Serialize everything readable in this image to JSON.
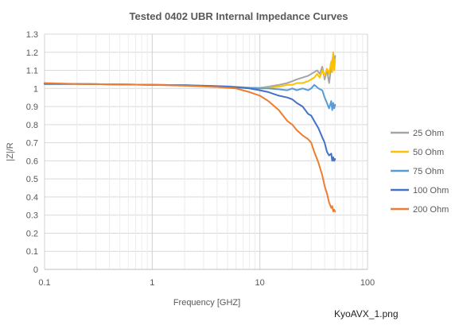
{
  "caption": "KyoAVX_1.png",
  "chart_data": {
    "type": "line",
    "title": "Tested 0402 UBR Internal Impedance Curves",
    "xlabel": "Frequency [GHZ]",
    "ylabel": "|Z|/R",
    "xscale": "log",
    "xlim": [
      0.1,
      100
    ],
    "ylim": [
      0,
      1.3
    ],
    "x_ticks": [
      0.1,
      1,
      10,
      100
    ],
    "x_tick_labels": [
      "0.1",
      "1",
      "10",
      "100"
    ],
    "y_ticks": [
      0,
      0.1,
      0.2,
      0.3,
      0.4,
      0.5,
      0.6,
      0.7,
      0.8,
      0.9,
      1,
      1.1,
      1.2,
      1.3
    ],
    "y_tick_labels": [
      "0",
      "0.1",
      "0.2",
      "0.3",
      "0.4",
      "0.5",
      "0.6",
      "0.7",
      "0.8",
      "0.9",
      "1",
      "1.1",
      "1.2",
      "1.3"
    ],
    "grid": "major and minor vertical, major horizontal",
    "legend_position": "right",
    "series": [
      {
        "name": "25 Ohm",
        "color": "#a5a5a5",
        "x": [
          0.1,
          0.2,
          0.5,
          1,
          2,
          5,
          8,
          10,
          12,
          15,
          18,
          20,
          22,
          25,
          28,
          30,
          32,
          34,
          36,
          38,
          40,
          42,
          44,
          46,
          47,
          48,
          49,
          50
        ],
        "y": [
          1.025,
          1.025,
          1.022,
          1.02,
          1.018,
          1.012,
          1.005,
          1.003,
          1.01,
          1.02,
          1.03,
          1.04,
          1.05,
          1.06,
          1.07,
          1.08,
          1.09,
          1.1,
          1.08,
          1.12,
          1.05,
          1.1,
          1.03,
          1.12,
          1.15,
          1.19,
          1.13,
          1.18
        ]
      },
      {
        "name": "50 Ohm",
        "color": "#ffc000",
        "x": [
          0.1,
          0.2,
          0.5,
          1,
          2,
          5,
          8,
          10,
          12,
          15,
          18,
          20,
          22,
          25,
          28,
          30,
          32,
          34,
          36,
          38,
          40,
          42,
          44,
          46,
          47,
          48,
          49,
          50
        ],
        "y": [
          1.025,
          1.025,
          1.022,
          1.02,
          1.018,
          1.01,
          1.003,
          1.0,
          1.005,
          1.01,
          1.02,
          1.02,
          1.03,
          1.03,
          1.04,
          1.05,
          1.06,
          1.08,
          1.06,
          1.1,
          1.07,
          1.11,
          1.08,
          1.15,
          1.09,
          1.2,
          1.1,
          1.16
        ]
      },
      {
        "name": "75 Ohm",
        "color": "#5b9bd5",
        "x": [
          0.1,
          0.2,
          0.5,
          1,
          2,
          5,
          8,
          10,
          12,
          15,
          18,
          20,
          22,
          25,
          28,
          30,
          32,
          35,
          38,
          40,
          42,
          44,
          46,
          47,
          48,
          49,
          50
        ],
        "y": [
          1.025,
          1.025,
          1.022,
          1.02,
          1.018,
          1.01,
          1.003,
          1.0,
          1.0,
          0.995,
          0.99,
          1.0,
          0.99,
          1.0,
          0.99,
          1.0,
          1.02,
          1.0,
          0.99,
          0.95,
          0.92,
          0.89,
          0.93,
          0.88,
          0.92,
          0.89,
          0.91
        ]
      },
      {
        "name": "100 Ohm",
        "color": "#4472c4",
        "x": [
          0.1,
          0.2,
          0.5,
          1,
          2,
          5,
          8,
          10,
          12,
          15,
          18,
          20,
          22,
          25,
          28,
          30,
          32,
          35,
          38,
          40,
          42,
          44,
          46,
          47,
          48,
          49,
          50
        ],
        "y": [
          1.025,
          1.025,
          1.022,
          1.02,
          1.018,
          1.01,
          1.0,
          0.99,
          0.98,
          0.96,
          0.95,
          0.94,
          0.92,
          0.9,
          0.86,
          0.85,
          0.82,
          0.78,
          0.73,
          0.7,
          0.65,
          0.63,
          0.64,
          0.6,
          0.62,
          0.6,
          0.61
        ]
      },
      {
        "name": "200 Ohm",
        "color": "#ed7d31",
        "x": [
          0.1,
          0.2,
          0.5,
          1,
          2,
          4,
          6,
          8,
          10,
          12,
          15,
          18,
          20,
          22,
          25,
          28,
          30,
          32,
          35,
          38,
          40,
          42,
          44,
          46,
          47,
          48,
          49,
          50
        ],
        "y": [
          1.03,
          1.025,
          1.022,
          1.02,
          1.015,
          1.008,
          1.0,
          0.98,
          0.96,
          0.93,
          0.88,
          0.82,
          0.8,
          0.77,
          0.74,
          0.72,
          0.7,
          0.65,
          0.59,
          0.52,
          0.46,
          0.42,
          0.37,
          0.34,
          0.35,
          0.32,
          0.33,
          0.32
        ]
      }
    ]
  }
}
